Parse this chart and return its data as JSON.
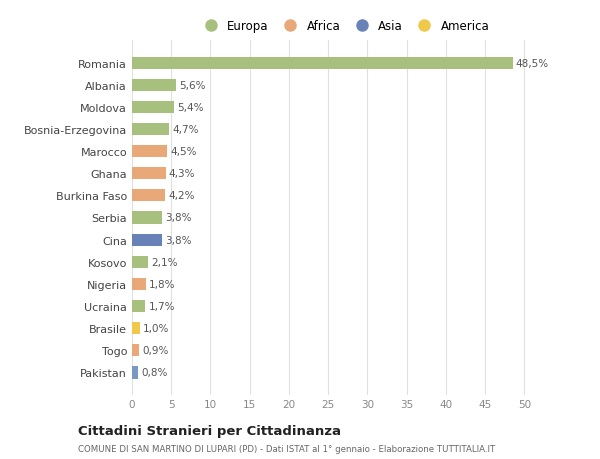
{
  "countries": [
    "Romania",
    "Albania",
    "Moldova",
    "Bosnia-Erzegovina",
    "Marocco",
    "Ghana",
    "Burkina Faso",
    "Serbia",
    "Cina",
    "Kosovo",
    "Nigeria",
    "Ucraina",
    "Brasile",
    "Togo",
    "Pakistan"
  ],
  "values": [
    48.5,
    5.6,
    5.4,
    4.7,
    4.5,
    4.3,
    4.2,
    3.8,
    3.8,
    2.1,
    1.8,
    1.7,
    1.0,
    0.9,
    0.8
  ],
  "labels": [
    "48,5%",
    "5,6%",
    "5,4%",
    "4,7%",
    "4,5%",
    "4,3%",
    "4,2%",
    "3,8%",
    "3,8%",
    "2,1%",
    "1,8%",
    "1,7%",
    "1,0%",
    "0,9%",
    "0,8%"
  ],
  "colors": [
    "#a8c07e",
    "#a8c07e",
    "#a8c07e",
    "#a8c07e",
    "#e8a878",
    "#e8a878",
    "#e8a878",
    "#a8c07e",
    "#6882b8",
    "#a8c07e",
    "#e8a878",
    "#a8c07e",
    "#f0c84a",
    "#e8a878",
    "#7898c0"
  ],
  "legend_labels": [
    "Europa",
    "Africa",
    "Asia",
    "America"
  ],
  "legend_colors": [
    "#a8c07e",
    "#e8a878",
    "#6882b8",
    "#f0c84a"
  ],
  "xlim": [
    0,
    52
  ],
  "xticks": [
    0,
    5,
    10,
    15,
    20,
    25,
    30,
    35,
    40,
    45,
    50
  ],
  "title": "Cittadini Stranieri per Cittadinanza",
  "subtitle": "COMUNE DI SAN MARTINO DI LUPARI (PD) - Dati ISTAT al 1° gennaio - Elaborazione TUTTITALIA.IT",
  "background_color": "#ffffff",
  "grid_color": "#e0e0e0",
  "bar_height": 0.55
}
